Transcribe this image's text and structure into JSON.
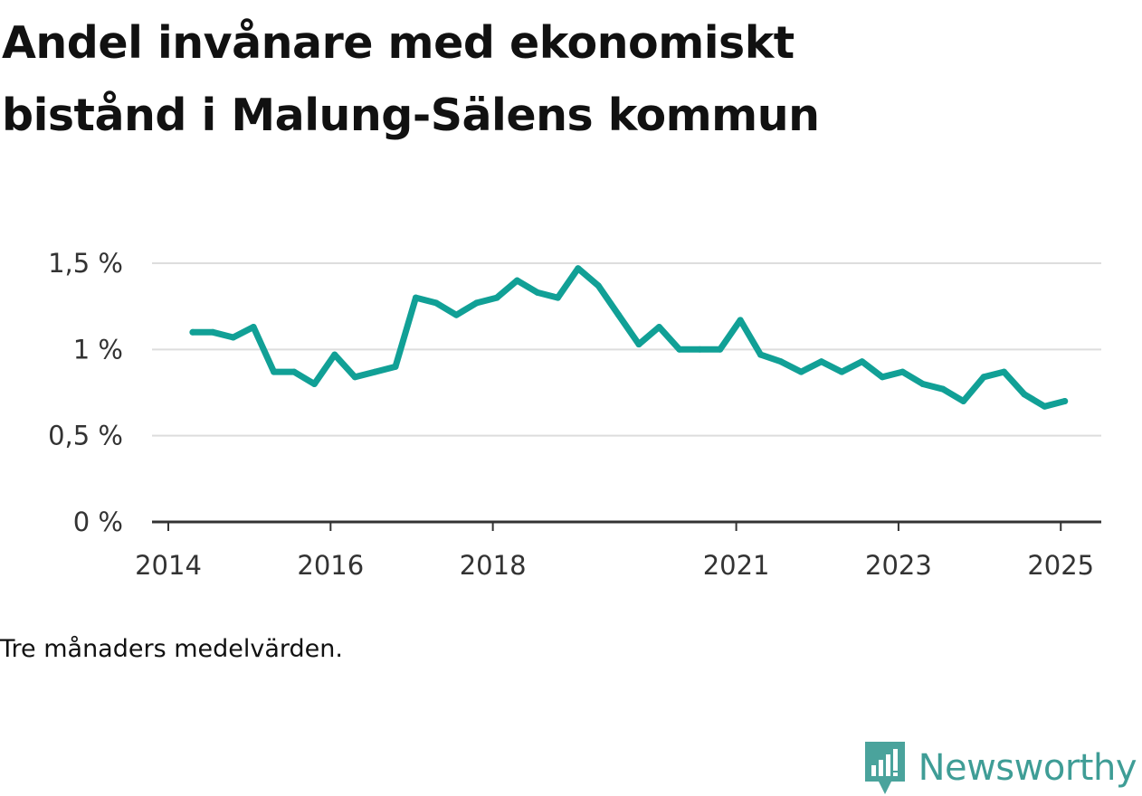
{
  "header": {
    "title_line1": "Andel invånare med ekonomiskt",
    "title_line2": "bistånd i Malung-Sälens kommun"
  },
  "note": "Tre månaders medelvärden.",
  "brand": {
    "name": "Newsworthy",
    "icon": "newsworthy-logo-icon",
    "color": "#4aa39c"
  },
  "chart_data": {
    "type": "line",
    "title": "Andel invånare med ekonomiskt bistånd i Malung-Sälens kommun",
    "xlabel": "",
    "ylabel": "",
    "ylim": [
      0,
      1.5
    ],
    "xlim": [
      2014.0,
      2025.7
    ],
    "grid": true,
    "y_ticks": [
      {
        "value": 0,
        "label": "0 %"
      },
      {
        "value": 0.5,
        "label": "0,5 %"
      },
      {
        "value": 1,
        "label": "1 %"
      },
      {
        "value": 1.5,
        "label": "1,5 %"
      }
    ],
    "x_ticks": [
      {
        "value": 2014,
        "label": "2014"
      },
      {
        "value": 2016,
        "label": "2016"
      },
      {
        "value": 2018,
        "label": "2018"
      },
      {
        "value": 2021,
        "label": "2021"
      },
      {
        "value": 2023,
        "label": "2023"
      },
      {
        "value": 2025,
        "label": "2025"
      }
    ],
    "series": [
      {
        "color": "#11a096",
        "x": [
          2014.3,
          2014.55,
          2014.8,
          2015.05,
          2015.3,
          2015.55,
          2015.8,
          2016.05,
          2016.3,
          2016.55,
          2016.8,
          2017.05,
          2017.3,
          2017.55,
          2017.8,
          2018.05,
          2018.3,
          2018.55,
          2018.8,
          2019.05,
          2019.3,
          2019.55,
          2019.8,
          2020.05,
          2020.3,
          2020.55,
          2020.8,
          2021.05,
          2021.3,
          2021.55,
          2021.8,
          2022.05,
          2022.3,
          2022.55,
          2022.8,
          2023.05,
          2023.3,
          2023.55,
          2023.8,
          2024.05,
          2024.3,
          2024.55,
          2024.8,
          2025.05
        ],
        "values": [
          1.1,
          1.1,
          1.07,
          1.13,
          0.87,
          0.87,
          0.8,
          0.97,
          0.84,
          0.87,
          0.9,
          1.3,
          1.27,
          1.2,
          1.27,
          1.3,
          1.4,
          1.33,
          1.3,
          1.47,
          1.37,
          1.2,
          1.03,
          1.13,
          1.0,
          1.0,
          1.0,
          1.17,
          0.97,
          0.93,
          0.87,
          0.93,
          0.87,
          0.93,
          0.84,
          0.87,
          0.8,
          0.77,
          0.7,
          0.84,
          0.87,
          0.74,
          0.67,
          0.7
        ]
      }
    ]
  }
}
